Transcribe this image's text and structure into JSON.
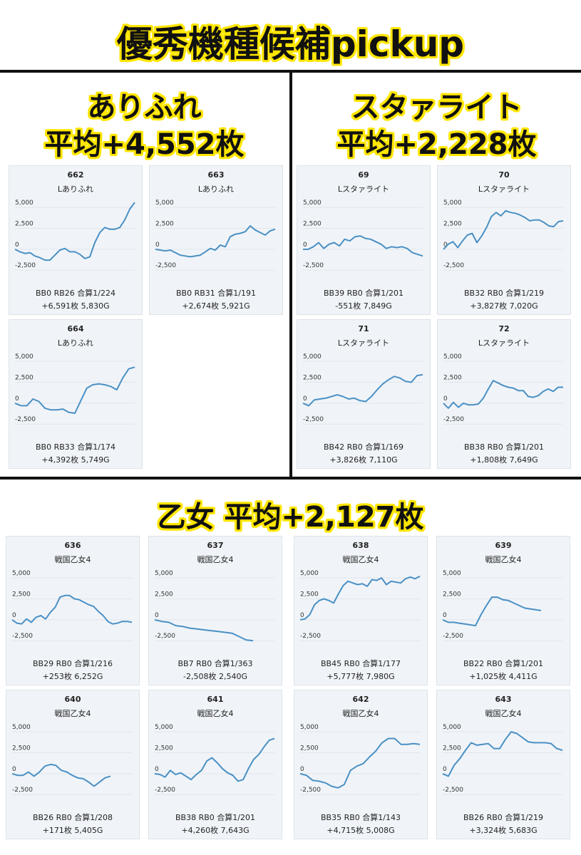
{
  "page": {
    "main_title": "優秀機種候補pickup",
    "group1": {
      "name": "ありふれ",
      "average": "平均+4,552枚"
    },
    "group2": {
      "name": "スタァライト",
      "average": "平均+2,228枚"
    },
    "group3": {
      "title": "乙女 平均+2,127枚"
    }
  },
  "axis": {
    "ticks": [
      "5,000",
      "2,500",
      "0",
      "-2,500"
    ],
    "tick_values": [
      5000,
      2500,
      0,
      -2500
    ],
    "ylim": [
      -3500,
      6200
    ]
  },
  "chart_data": [
    {
      "type": "line",
      "machine_no": "662",
      "model": "Lありふれ",
      "stat_line1": "BB0 RB26 合算1/224",
      "stat_line2": "+6,591枚 5,830G",
      "y": [
        0,
        -300,
        -500,
        -400,
        -800,
        -1000,
        -1300,
        -1300,
        -700,
        -100,
        100,
        -300,
        -300,
        -600,
        -1100,
        -900,
        800,
        2000,
        2600,
        2400,
        2400,
        2600,
        3500,
        4800,
        5600
      ]
    },
    {
      "type": "line",
      "machine_no": "663",
      "model": "Lありふれ",
      "stat_line1": "BB0 RB31 合算1/191",
      "stat_line2": "+2,674枚 5,921G",
      "y": [
        0,
        -100,
        -200,
        -100,
        -400,
        -700,
        -800,
        -900,
        -800,
        -700,
        -300,
        100,
        -100,
        500,
        300,
        1500,
        1800,
        1900,
        2100,
        2800,
        2300,
        2000,
        1700,
        2200,
        2400
      ]
    },
    {
      "type": "line",
      "machine_no": "664",
      "model": "Lありふれ",
      "stat_line1": "BB0 RB33 合算1/174",
      "stat_line2": "+4,392枚 5,749G",
      "y": [
        0,
        -300,
        -300,
        500,
        200,
        -600,
        -800,
        -800,
        -700,
        -1100,
        -1200,
        300,
        1800,
        2200,
        2300,
        2200,
        2000,
        1600,
        3000,
        4100,
        4300
      ]
    },
    {
      "type": "line",
      "machine_no": "69",
      "model": "Lスタァライト",
      "stat_line1": "BB39 RB0 合算1/201",
      "stat_line2": "-551枚 7,849G",
      "y": [
        0,
        0,
        300,
        800,
        100,
        600,
        800,
        400,
        1200,
        1000,
        1500,
        1600,
        1300,
        1200,
        900,
        600,
        100,
        300,
        200,
        300,
        100,
        -400,
        -600,
        -800
      ]
    },
    {
      "type": "line",
      "machine_no": "70",
      "model": "Lスタァライト",
      "stat_line1": "BB32 RB0 合算1/219",
      "stat_line2": "+3,827枚 7,020G",
      "y": [
        0,
        600,
        900,
        200,
        1000,
        1700,
        1900,
        800,
        1600,
        2600,
        3900,
        4400,
        4000,
        4600,
        4400,
        4300,
        4100,
        3800,
        3400,
        3500,
        3500,
        3200,
        2800,
        2700,
        3300,
        3400
      ]
    },
    {
      "type": "line",
      "machine_no": "71",
      "model": "Lスタァライト",
      "stat_line1": "BB42 RB0 合算1/169",
      "stat_line2": "+3,826枚 7,110G",
      "y": [
        0,
        -300,
        400,
        500,
        600,
        800,
        1000,
        800,
        500,
        600,
        300,
        200,
        800,
        1600,
        2300,
        2800,
        3200,
        3000,
        2600,
        2500,
        3300,
        3400
      ]
    },
    {
      "type": "line",
      "machine_no": "72",
      "model": "Lスタァライト",
      "stat_line1": "BB38 RB0 合算1/201",
      "stat_line2": "+1,808枚 7,649G",
      "y": [
        0,
        -600,
        100,
        -500,
        0,
        -200,
        -200,
        -100,
        600,
        1700,
        2700,
        2400,
        2100,
        1900,
        1800,
        1500,
        1500,
        800,
        700,
        900,
        1400,
        1700,
        1400,
        1900,
        1900
      ]
    },
    {
      "type": "line",
      "machine_no": "636",
      "model": "戦国乙女4",
      "stat_line1": "BB29 RB0 合算1/216",
      "stat_line2": "+253枚 6,252G",
      "y": [
        0,
        -400,
        -500,
        100,
        -300,
        300,
        500,
        100,
        900,
        1500,
        2700,
        2900,
        2900,
        2500,
        2400,
        2100,
        1800,
        1600,
        1000,
        500,
        -200,
        -500,
        -400,
        -200,
        -200,
        -300
      ]
    },
    {
      "type": "line",
      "machine_no": "637",
      "model": "戦国乙女4",
      "stat_line1": "BB7 RB0 合算1/363",
      "stat_line2": "-2,508枚 2,540G",
      "y": [
        0,
        -200,
        -300,
        -700,
        -800,
        -1000,
        -1100,
        -1200,
        -1300,
        -1400,
        -1500,
        -1600,
        -2000,
        -2400,
        -2500
      ]
    },
    {
      "type": "line",
      "machine_no": "638",
      "model": "戦国乙女4",
      "stat_line1": "BB45 RB0 合算1/177",
      "stat_line2": "+5,777枚 7,980G",
      "y": [
        0,
        100,
        600,
        1800,
        2300,
        2500,
        2300,
        2000,
        3100,
        4100,
        4600,
        4400,
        4200,
        4300,
        4000,
        4800,
        4700,
        5000,
        4200,
        4600,
        4500,
        4400,
        4900,
        5100,
        4900,
        5200
      ]
    },
    {
      "type": "line",
      "machine_no": "639",
      "model": "戦国乙女4",
      "stat_line1": "BB22 RB0 合算1/201",
      "stat_line2": "+1,025枚 4,411G",
      "y": [
        0,
        -300,
        -300,
        -400,
        -500,
        -600,
        -700,
        600,
        1700,
        2700,
        2700,
        2400,
        2300,
        2000,
        1700,
        1400,
        1300,
        1200,
        1100
      ]
    },
    {
      "type": "line",
      "machine_no": "640",
      "model": "戦国乙女4",
      "stat_line1": "BB26 RB0 合算1/208",
      "stat_line2": "+171枚 5,405G",
      "y": [
        0,
        -200,
        -200,
        200,
        -300,
        200,
        900,
        1100,
        1000,
        400,
        200,
        -200,
        -500,
        -600,
        -1000,
        -1500,
        -1000,
        -500,
        -300
      ]
    },
    {
      "type": "line",
      "machine_no": "641",
      "model": "戦国乙女4",
      "stat_line1": "BB38 RB0 合算1/201",
      "stat_line2": "+4,260枚 7,643G",
      "y": [
        0,
        -100,
        -400,
        400,
        -100,
        100,
        -300,
        -700,
        -100,
        400,
        1500,
        1900,
        1300,
        600,
        100,
        -200,
        -900,
        -700,
        600,
        1700,
        2300,
        3200,
        4000,
        4200
      ]
    },
    {
      "type": "line",
      "machine_no": "642",
      "model": "戦国乙女4",
      "stat_line1": "BB35 RB0 合算1/143",
      "stat_line2": "+4,715枚 5,008G",
      "y": [
        0,
        -200,
        -800,
        -900,
        -1100,
        -1500,
        -1700,
        -1300,
        400,
        900,
        1200,
        2000,
        2700,
        3700,
        4200,
        4200,
        3500,
        3500,
        3600,
        3500
      ]
    },
    {
      "type": "line",
      "machine_no": "643",
      "model": "戦国乙女4",
      "stat_line1": "BB26 RB0 合算1/219",
      "stat_line2": "+3,324枚 5,683G",
      "y": [
        0,
        -300,
        1000,
        1800,
        2800,
        3700,
        3400,
        3500,
        3600,
        3000,
        3000,
        4100,
        5000,
        4800,
        4300,
        3800,
        3700,
        3700,
        3700,
        3600,
        3000,
        2800
      ]
    }
  ]
}
